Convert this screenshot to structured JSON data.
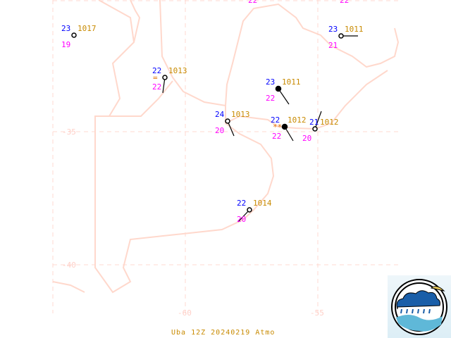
{
  "map": {
    "footer": "Uba 12Z 20240219 Atmo",
    "lon_labels": [
      "-60",
      "-55"
    ],
    "lat_labels": [
      "-35",
      "-40"
    ],
    "colors": {
      "temperature": "#0000ff",
      "pressure": "#c88a00",
      "dewpoint": "#ff00ff",
      "border": "#ffd8cc",
      "grid": "#ffd0c8"
    },
    "stations": [
      {
        "temp": "23",
        "pressure": "1017",
        "dewpoint": "19",
        "weather": ""
      },
      {
        "temp": "22",
        "pressure": "1013",
        "dewpoint": "22",
        "weather": "="
      },
      {
        "temp": "23",
        "pressure": "1011",
        "dewpoint": "22",
        "weather": ""
      },
      {
        "temp": "23",
        "pressure": "1011",
        "dewpoint": "21",
        "weather": ""
      },
      {
        "temp": "24",
        "pressure": "1013",
        "dewpoint": "20",
        "weather": ""
      },
      {
        "temp": "22",
        "pressure": "1012",
        "dewpoint": "22",
        "weather": "**"
      },
      {
        "temp": "21",
        "pressure": "1012",
        "dewpoint": "20",
        "weather": ""
      },
      {
        "temp": "22",
        "pressure": "1014",
        "dewpoint": "20",
        "weather": ""
      }
    ],
    "partial_dewpoints": [
      "22",
      "22"
    ],
    "logo_icon": "weather-cloud-rain-sun-sea-logo"
  }
}
